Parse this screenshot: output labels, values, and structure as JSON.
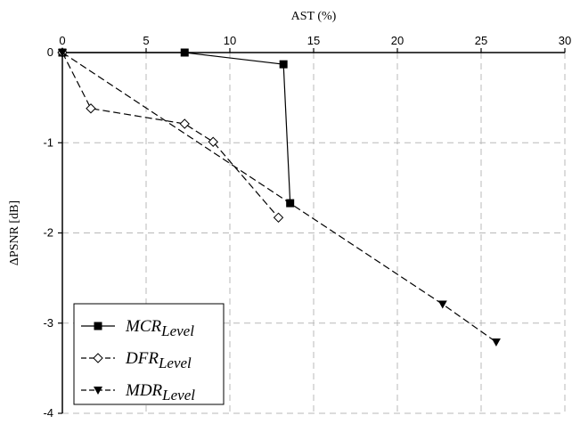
{
  "chart_data": {
    "type": "line",
    "xlabel": "AST (%)",
    "ylabel": "ΔPSNR [dB]",
    "xlim": [
      0,
      30
    ],
    "ylim": [
      -4,
      0
    ],
    "x_ticks": [
      "0",
      "5",
      "10",
      "15",
      "20",
      "25",
      "30"
    ],
    "y_ticks": [
      "0",
      "-1",
      "-2",
      "-3",
      "-4"
    ],
    "x_axis_position": "top",
    "grid": true,
    "legend_position": "bottom-left",
    "series": [
      {
        "name": "MCR",
        "name_sub": "Level",
        "marker": "square-filled",
        "line": "solid",
        "x": [
          0,
          7.3,
          13.2,
          13.6
        ],
        "y": [
          0,
          0,
          -0.13,
          -1.67
        ]
      },
      {
        "name": "DFR",
        "name_sub": "Level",
        "marker": "diamond-open",
        "line": "dashed",
        "x": [
          0,
          1.7,
          7.3,
          9.0,
          12.9
        ],
        "y": [
          0,
          -0.62,
          -0.79,
          -0.99,
          -1.83
        ]
      },
      {
        "name": "MDR",
        "name_sub": "Level",
        "marker": "triangle-down-filled",
        "line": "dashed",
        "x": [
          0,
          22.7,
          25.9
        ],
        "y": [
          0,
          -2.79,
          -3.21
        ]
      }
    ]
  }
}
